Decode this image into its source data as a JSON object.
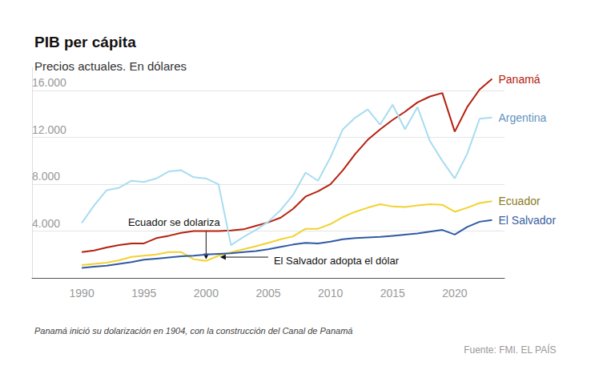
{
  "chart_data": {
    "type": "line",
    "title": "PIB per cápita",
    "subtitle": "Precios actuales. En dólares",
    "footnote": "Panamá inició su dolarización en 1904, con la construcción del Canal de Panamá",
    "source": "Fuente: FMI. EL PAÍS",
    "x": [
      1990,
      1991,
      1992,
      1993,
      1994,
      1995,
      1996,
      1997,
      1998,
      1999,
      2000,
      2001,
      2002,
      2003,
      2004,
      2005,
      2006,
      2007,
      2008,
      2009,
      2010,
      2011,
      2012,
      2013,
      2014,
      2015,
      2016,
      2017,
      2018,
      2019,
      2020,
      2021,
      2022,
      2023
    ],
    "series": [
      {
        "name": "Panamá",
        "color": "#b5200f",
        "values": [
          2200,
          2350,
          2600,
          2800,
          2950,
          2950,
          3400,
          3600,
          3850,
          4000,
          4000,
          4000,
          4050,
          4150,
          4450,
          4750,
          5150,
          5900,
          6950,
          7400,
          8000,
          9200,
          10600,
          11800,
          12700,
          13500,
          14200,
          15000,
          15500,
          15800,
          12500,
          14600,
          16100,
          17000
        ]
      },
      {
        "name": "Argentina",
        "color": "#a8dcf0",
        "values": [
          4700,
          6200,
          7500,
          7700,
          8300,
          8200,
          8500,
          9100,
          9200,
          8600,
          8500,
          8000,
          2800,
          3500,
          4100,
          4800,
          5800,
          7100,
          9000,
          8300,
          10300,
          12700,
          13700,
          14400,
          13100,
          14800,
          12700,
          14600,
          11700,
          10000,
          8500,
          10600,
          13600,
          13700
        ]
      },
      {
        "name": "Ecuador",
        "color": "#f2d230",
        "values": [
          1100,
          1200,
          1300,
          1500,
          1800,
          1900,
          2000,
          2200,
          2200,
          1600,
          1450,
          1900,
          2200,
          2450,
          2700,
          3000,
          3300,
          3550,
          4200,
          4200,
          4600,
          5200,
          5650,
          6000,
          6300,
          6100,
          6050,
          6200,
          6300,
          6250,
          5650,
          6000,
          6400,
          6550
        ]
      },
      {
        "name": "El Salvador",
        "color": "#2f5aa3",
        "values": [
          850,
          950,
          1050,
          1200,
          1350,
          1550,
          1650,
          1750,
          1850,
          1900,
          2000,
          2050,
          2100,
          2200,
          2300,
          2450,
          2650,
          2850,
          3000,
          2950,
          3100,
          3300,
          3400,
          3450,
          3500,
          3600,
          3700,
          3800,
          3950,
          4100,
          3700,
          4350,
          4800,
          4950
        ]
      }
    ],
    "xlim": [
      1986,
      2024
    ],
    "xticks": [
      1990,
      1995,
      2000,
      2005,
      2010,
      2015,
      2020
    ],
    "ylim": [
      0,
      18000
    ],
    "yticks": [
      {
        "value": 4000,
        "label": "4.000"
      },
      {
        "value": 8000,
        "label": "8.000"
      },
      {
        "value": 12000,
        "label": "12.000"
      },
      {
        "value": 16000,
        "label": "16.000"
      }
    ],
    "grid": true,
    "annotations": [
      {
        "text": "Ecuador se dolariza",
        "x": 2000,
        "y": 1450
      },
      {
        "text": "El Salvador adopta el dólar",
        "x": 2001,
        "y": 2050
      }
    ]
  }
}
